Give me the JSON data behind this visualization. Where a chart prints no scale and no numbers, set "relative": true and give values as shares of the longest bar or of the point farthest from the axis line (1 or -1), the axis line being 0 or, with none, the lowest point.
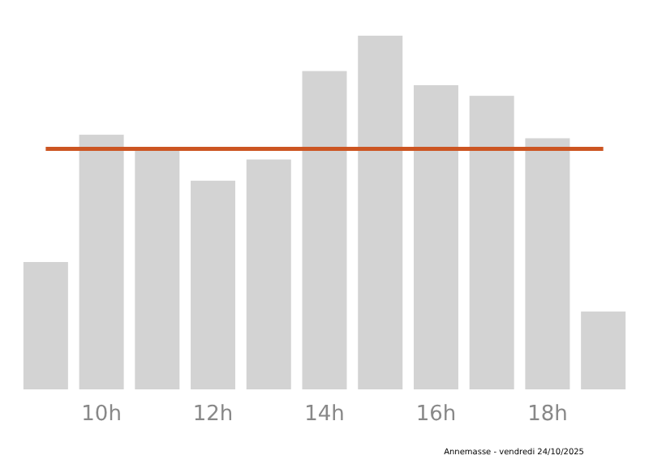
{
  "chart_data": {
    "type": "bar",
    "relative": true,
    "categories": [
      null,
      "10h",
      null,
      "12h",
      null,
      "14h",
      null,
      "16h",
      null,
      "18h",
      null
    ],
    "values": [
      0.36,
      0.72,
      0.68,
      0.59,
      0.65,
      0.9,
      1,
      0.86,
      0.83,
      0.71,
      0.22
    ],
    "color": "#d3d3d3",
    "ref_lines": [
      {
        "axis": "y",
        "value": 0.68,
        "color": "#cc5522"
      }
    ],
    "annotations": [
      "Annemasse - vendredi 24/10/2025"
    ]
  }
}
